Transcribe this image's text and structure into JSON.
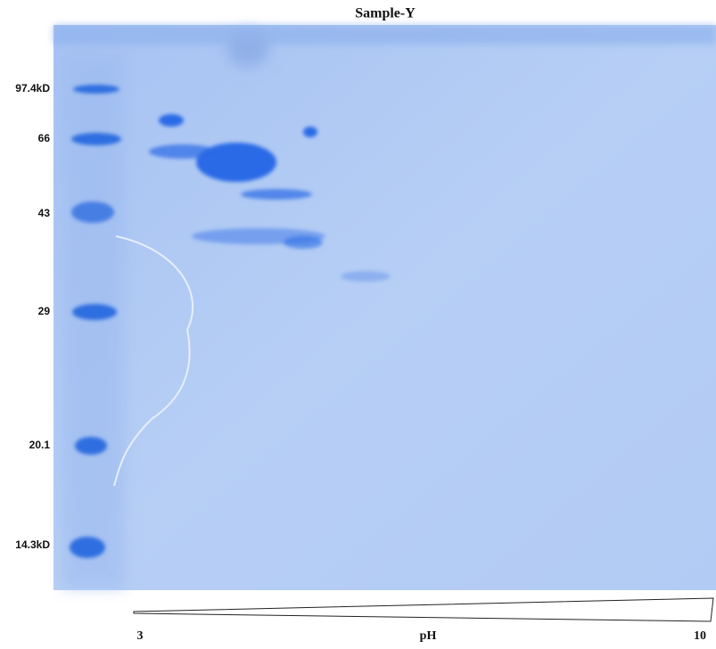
{
  "title": "Sample-Y",
  "markers": [
    "97.4kD",
    "66",
    "43",
    "29",
    "20.1",
    "14.3kD"
  ],
  "ph_axis": {
    "start": "3",
    "label": "pH",
    "end": "10"
  }
}
